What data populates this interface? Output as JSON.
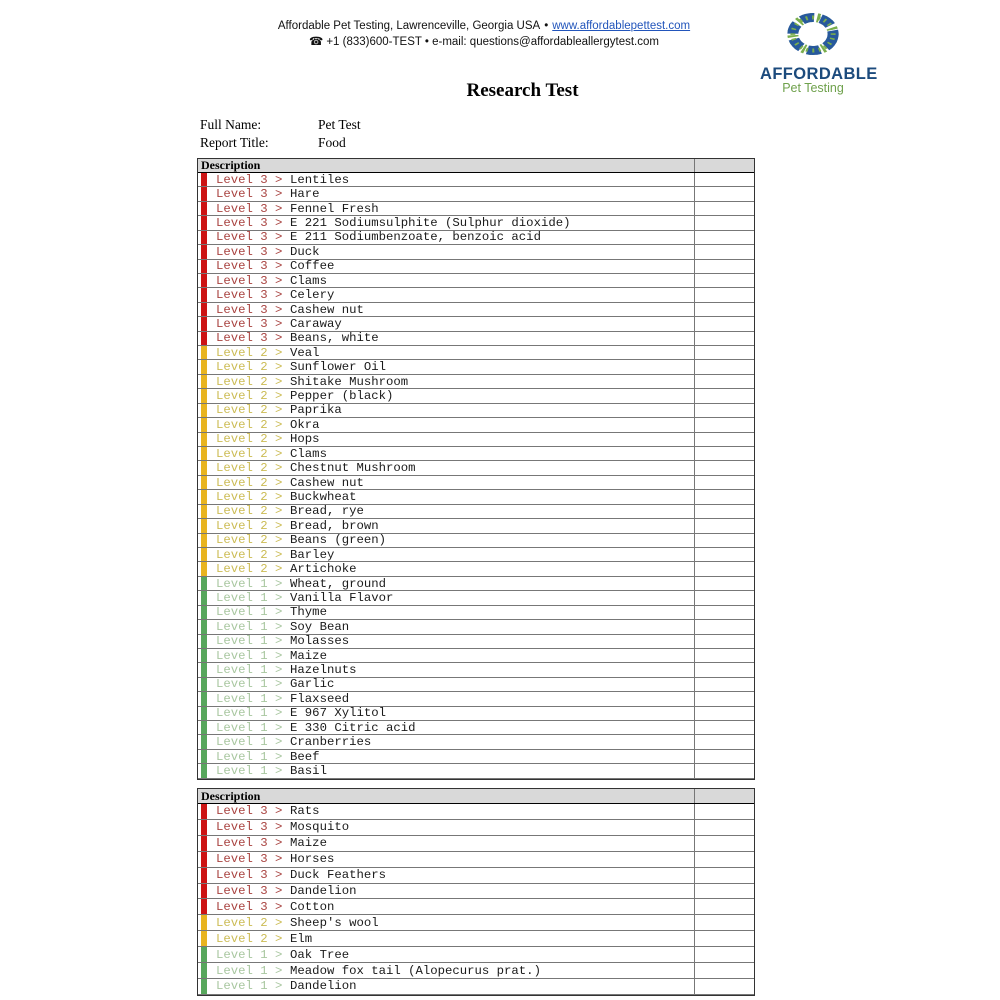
{
  "header": {
    "line1_text": "Affordable Pet Testing, Lawrenceville, Georgia USA",
    "bullet": "•",
    "line1_link": "www.affordablepettest.com",
    "phone_icon": "☎",
    "line2_text": "+1 (833)600-TEST • e-mail: questions@affordableallergytest.com"
  },
  "logo": {
    "name": "AFFORDABLE",
    "subtitle": "Pet Testing",
    "brand_blue": "#1c4b7d",
    "brand_green": "#6fa14c",
    "wreath_blue": "#27599c",
    "wreath_green": "#7aae4d"
  },
  "title": "Research Test",
  "info": {
    "full_name_label": "Full Name:",
    "full_name_value": "Pet Test",
    "report_title_label": "Report Title:",
    "report_title_value": "Food"
  },
  "levels": {
    "3": {
      "bar_color": "#cc1414",
      "text_color": "#a94340"
    },
    "2": {
      "bar_color": "#e8b41f",
      "text_color": "#ccbc55"
    },
    "1": {
      "bar_color": "#57a75c",
      "text_color": "#a9c7a0"
    }
  },
  "tables": [
    {
      "header": "Description",
      "rows": [
        {
          "level": "3",
          "prefix": "Level 3 >",
          "item": "Lentiles"
        },
        {
          "level": "3",
          "prefix": "Level 3 >",
          "item": "Hare"
        },
        {
          "level": "3",
          "prefix": "Level 3 >",
          "item": "Fennel Fresh"
        },
        {
          "level": "3",
          "prefix": "Level 3 >",
          "item": "E 221 Sodiumsulphite (Sulphur dioxide)"
        },
        {
          "level": "3",
          "prefix": "Level 3 >",
          "item": "E 211 Sodiumbenzoate, benzoic acid"
        },
        {
          "level": "3",
          "prefix": "Level 3 >",
          "item": "Duck"
        },
        {
          "level": "3",
          "prefix": "Level 3 >",
          "item": "Coffee"
        },
        {
          "level": "3",
          "prefix": "Level 3 >",
          "item": "Clams"
        },
        {
          "level": "3",
          "prefix": "Level 3 >",
          "item": "Celery"
        },
        {
          "level": "3",
          "prefix": "Level 3 >",
          "item": "Cashew nut"
        },
        {
          "level": "3",
          "prefix": "Level 3 >",
          "item": "Caraway"
        },
        {
          "level": "3",
          "prefix": "Level 3 >",
          "item": "Beans, white"
        },
        {
          "level": "2",
          "prefix": "Level 2 >",
          "item": "Veal"
        },
        {
          "level": "2",
          "prefix": "Level 2 >",
          "item": "Sunflower Oil"
        },
        {
          "level": "2",
          "prefix": "Level 2 >",
          "item": "Shitake Mushroom"
        },
        {
          "level": "2",
          "prefix": "Level 2 >",
          "item": "Pepper (black)"
        },
        {
          "level": "2",
          "prefix": "Level 2 >",
          "item": "Paprika"
        },
        {
          "level": "2",
          "prefix": "Level 2 >",
          "item": "Okra"
        },
        {
          "level": "2",
          "prefix": "Level 2 >",
          "item": "Hops"
        },
        {
          "level": "2",
          "prefix": "Level 2 >",
          "item": "Clams"
        },
        {
          "level": "2",
          "prefix": "Level 2 >",
          "item": "Chestnut Mushroom"
        },
        {
          "level": "2",
          "prefix": "Level 2 >",
          "item": "Cashew nut"
        },
        {
          "level": "2",
          "prefix": "Level 2 >",
          "item": "Buckwheat"
        },
        {
          "level": "2",
          "prefix": "Level 2 >",
          "item": "Bread, rye"
        },
        {
          "level": "2",
          "prefix": "Level 2 >",
          "item": "Bread, brown"
        },
        {
          "level": "2",
          "prefix": "Level 2 >",
          "item": "Beans (green)"
        },
        {
          "level": "2",
          "prefix": "Level 2 >",
          "item": "Barley"
        },
        {
          "level": "2",
          "prefix": "Level 2 >",
          "item": "Artichoke"
        },
        {
          "level": "1",
          "prefix": "Level 1 >",
          "item": "Wheat, ground"
        },
        {
          "level": "1",
          "prefix": "Level 1 >",
          "item": "Vanilla Flavor"
        },
        {
          "level": "1",
          "prefix": "Level 1 >",
          "item": "Thyme"
        },
        {
          "level": "1",
          "prefix": "Level 1 >",
          "item": "Soy Bean"
        },
        {
          "level": "1",
          "prefix": "Level 1 >",
          "item": "Molasses"
        },
        {
          "level": "1",
          "prefix": "Level 1 >",
          "item": "Maize"
        },
        {
          "level": "1",
          "prefix": "Level 1 >",
          "item": "Hazelnuts"
        },
        {
          "level": "1",
          "prefix": "Level 1 >",
          "item": "Garlic"
        },
        {
          "level": "1",
          "prefix": "Level 1 >",
          "item": "Flaxseed"
        },
        {
          "level": "1",
          "prefix": "Level 1 >",
          "item": "E 967 Xylitol"
        },
        {
          "level": "1",
          "prefix": "Level 1 >",
          "item": "E 330 Citric acid"
        },
        {
          "level": "1",
          "prefix": "Level 1 >",
          "item": "Cranberries"
        },
        {
          "level": "1",
          "prefix": "Level 1 >",
          "item": "Beef"
        },
        {
          "level": "1",
          "prefix": "Level 1 >",
          "item": "Basil"
        }
      ]
    },
    {
      "header": "Description",
      "rows": [
        {
          "level": "3",
          "prefix": "Level 3 >",
          "item": "Rats"
        },
        {
          "level": "3",
          "prefix": "Level 3 >",
          "item": "Mosquito"
        },
        {
          "level": "3",
          "prefix": "Level 3 >",
          "item": "Maize"
        },
        {
          "level": "3",
          "prefix": "Level 3 >",
          "item": "Horses"
        },
        {
          "level": "3",
          "prefix": "Level 3 >",
          "item": "Duck Feathers"
        },
        {
          "level": "3",
          "prefix": "Level 3 >",
          "item": "Dandelion"
        },
        {
          "level": "3",
          "prefix": "Level 3 >",
          "item": "Cotton"
        },
        {
          "level": "2",
          "prefix": "Level 2 >",
          "item": "Sheep's wool"
        },
        {
          "level": "2",
          "prefix": "Level 2 >",
          "item": "Elm"
        },
        {
          "level": "1",
          "prefix": "Level 1 >",
          "item": "Oak Tree"
        },
        {
          "level": "1",
          "prefix": "Level 1 >",
          "item": "Meadow fox tail (Alopecurus prat.)"
        },
        {
          "level": "1",
          "prefix": "Level 1 >",
          "item": "Dandelion"
        }
      ]
    }
  ]
}
